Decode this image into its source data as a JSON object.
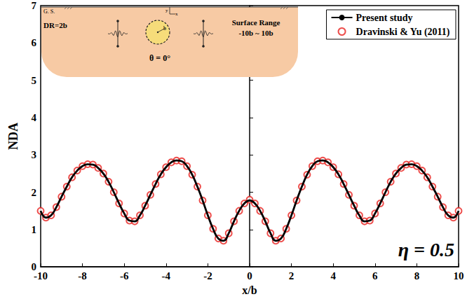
{
  "chart_data": {
    "type": "line",
    "x_label": "x/b",
    "y_label": "NDA",
    "x": [
      -10,
      -9.75,
      -9.5,
      -9.25,
      -9,
      -8.75,
      -8.5,
      -8.25,
      -8,
      -7.75,
      -7.5,
      -7.25,
      -7,
      -6.75,
      -6.5,
      -6.25,
      -6,
      -5.75,
      -5.5,
      -5.25,
      -5,
      -4.75,
      -4.5,
      -4.25,
      -4,
      -3.75,
      -3.5,
      -3.25,
      -3,
      -2.75,
      -2.5,
      -2.25,
      -2,
      -1.75,
      -1.5,
      -1.25,
      -1,
      -0.75,
      -0.5,
      -0.25,
      0,
      0.25,
      0.5,
      0.75,
      1,
      1.25,
      1.5,
      1.75,
      2,
      2.25,
      2.5,
      2.75,
      3,
      3.25,
      3.5,
      3.75,
      4,
      4.25,
      4.5,
      4.75,
      5,
      5.25,
      5.5,
      5.75,
      6,
      6.25,
      6.5,
      6.75,
      7,
      7.25,
      7.5,
      7.75,
      8,
      8.25,
      8.5,
      8.75,
      9,
      9.25,
      9.5,
      9.75,
      10
    ],
    "series": [
      {
        "name": "Present study",
        "type": "line",
        "color": "#000000",
        "line_style": "solid",
        "values": [
          1.5,
          1.32,
          1.38,
          1.6,
          1.88,
          2.15,
          2.4,
          2.58,
          2.7,
          2.75,
          2.74,
          2.65,
          2.5,
          2.28,
          2.0,
          1.7,
          1.43,
          1.24,
          1.22,
          1.38,
          1.64,
          1.93,
          2.22,
          2.48,
          2.67,
          2.8,
          2.85,
          2.83,
          2.7,
          2.47,
          2.15,
          1.78,
          1.38,
          1.02,
          0.76,
          0.7,
          0.9,
          1.22,
          1.5,
          1.7,
          1.78,
          1.7,
          1.5,
          1.22,
          0.9,
          0.7,
          0.76,
          1.02,
          1.38,
          1.78,
          2.15,
          2.47,
          2.7,
          2.83,
          2.85,
          2.8,
          2.67,
          2.48,
          2.22,
          1.93,
          1.64,
          1.38,
          1.22,
          1.24,
          1.43,
          1.7,
          2.0,
          2.28,
          2.5,
          2.65,
          2.74,
          2.75,
          2.7,
          2.58,
          2.4,
          2.15,
          1.88,
          1.6,
          1.38,
          1.32,
          1.5
        ]
      },
      {
        "name": "Dravinski & Yu (2011)",
        "type": "scatter",
        "color": "#e8221f",
        "marker": "circle-open",
        "values": [
          1.5,
          1.32,
          1.38,
          1.6,
          1.88,
          2.15,
          2.4,
          2.58,
          2.7,
          2.75,
          2.74,
          2.65,
          2.5,
          2.28,
          2.0,
          1.7,
          1.43,
          1.24,
          1.22,
          1.38,
          1.64,
          1.93,
          2.22,
          2.48,
          2.67,
          2.8,
          2.85,
          2.83,
          2.7,
          2.47,
          2.15,
          1.78,
          1.38,
          1.02,
          0.76,
          0.7,
          0.9,
          1.22,
          1.5,
          1.7,
          1.8,
          1.7,
          1.5,
          1.22,
          0.9,
          0.7,
          0.76,
          1.02,
          1.38,
          1.78,
          2.15,
          2.47,
          2.7,
          2.83,
          2.85,
          2.8,
          2.67,
          2.48,
          2.22,
          1.93,
          1.64,
          1.38,
          1.22,
          1.24,
          1.43,
          1.7,
          2.0,
          2.28,
          2.5,
          2.65,
          2.74,
          2.75,
          2.7,
          2.58,
          2.4,
          2.15,
          1.88,
          1.6,
          1.38,
          1.32,
          1.5
        ]
      }
    ],
    "xlim": [
      -10,
      10
    ],
    "xticks": [
      -10,
      -8,
      -6,
      -4,
      -2,
      0,
      2,
      4,
      6,
      8,
      10
    ],
    "ylim": [
      0,
      7
    ],
    "yticks": [
      0,
      1,
      2,
      3,
      4,
      5,
      6,
      7
    ],
    "grid": false,
    "legend": "upper right",
    "annotations": [
      "G. S.",
      "DR=2b",
      "θ = 0°",
      "Surface Range",
      "-10b ~ 10b",
      "b",
      "y",
      "x",
      "η = 0.5"
    ]
  }
}
